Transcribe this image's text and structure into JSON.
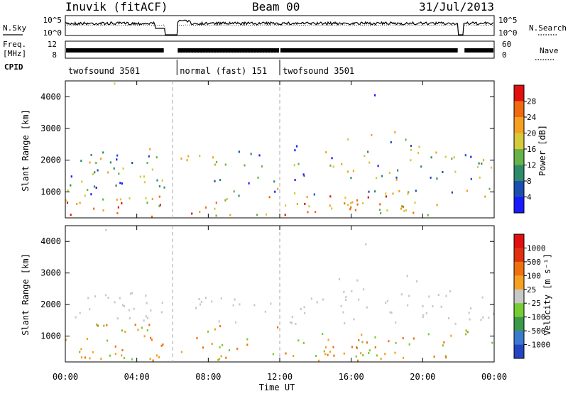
{
  "header": {
    "station": "Inuvik (fitACF)",
    "beam": "Beam 00",
    "date": "31/Jul/2013"
  },
  "strip_labels": {
    "nsky": "N.Sky",
    "nsearch": "N.Search",
    "freq_line1": "Freq.",
    "freq_line2": "[MHz]",
    "nave": "Nave",
    "cpid": "CPID",
    "nsky_ticks": [
      "10^5",
      "10^0"
    ],
    "nsearch_ticks": [
      "10^5",
      "10^0"
    ],
    "freq_ticks": [
      "12",
      "8"
    ],
    "nave_ticks": [
      "60",
      "0"
    ]
  },
  "cpid_segments": [
    {
      "label": "twofsound 3501",
      "start_h": 0.0,
      "end_h": 6.25
    },
    {
      "label": "normal (fast) 151",
      "start_h": 6.25,
      "end_h": 12.0
    },
    {
      "label": "twofsound 3501",
      "start_h": 12.0,
      "end_h": 24.0
    }
  ],
  "chart_data": [
    {
      "type": "heatmap",
      "name": "Power",
      "xlabel": "",
      "ylabel": "Slant Range [km]",
      "xlim": [
        0,
        24
      ],
      "ylim": [
        180,
        4500
      ],
      "yticks": [
        1000,
        2000,
        3000,
        4000
      ],
      "colorbar": {
        "label": "Power [dB]",
        "ticks": [
          "4",
          "8",
          "12",
          "16",
          "20",
          "24",
          "28"
        ],
        "colors": [
          "#1a1aff",
          "#1c4fb0",
          "#2f8a6a",
          "#66b34a",
          "#d6c93a",
          "#f5a020",
          "#f06a10",
          "#e01010"
        ]
      }
    },
    {
      "type": "heatmap",
      "name": "Velocity",
      "xlabel": "Time UT",
      "ylabel": "Slant Range [km]",
      "xlim": [
        0,
        24
      ],
      "ylim": [
        180,
        4500
      ],
      "xticks": [
        "00:00",
        "04:00",
        "08:00",
        "12:00",
        "16:00",
        "20:00",
        "00:00"
      ],
      "yticks": [
        1000,
        2000,
        3000,
        4000
      ],
      "colorbar": {
        "label": "Velocity [m s⁻¹]",
        "ticks": [
          "1000",
          "500",
          "100",
          "25",
          "-25",
          "-100",
          "-500",
          "-1000"
        ],
        "colors": [
          "#2545c0",
          "#3a7ad0",
          "#3a9a4a",
          "#77cc33",
          "#c8c8c8",
          "#f5a020",
          "#f07010",
          "#e03010",
          "#e01010"
        ]
      }
    }
  ]
}
